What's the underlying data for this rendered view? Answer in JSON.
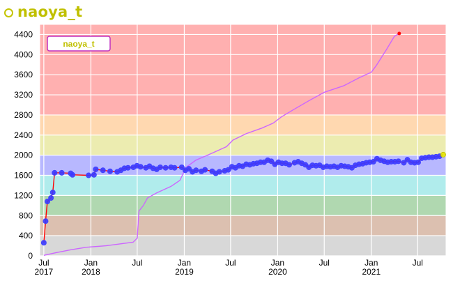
{
  "header": {
    "title": "naoya_t"
  },
  "colors": {
    "accent": "#c0c000",
    "rating_line": "#ff0000",
    "rating_points": "#3a3aff",
    "perf_line": "#cc66ff"
  },
  "chart_data": {
    "type": "line",
    "title": "",
    "legend": {
      "label": "naoya_t",
      "placement": "top-left"
    },
    "ylim": [
      0,
      4600
    ],
    "xlim": [
      "2017-06-15",
      "2021-10-20"
    ],
    "y_ticks": [
      0,
      400,
      800,
      1200,
      1600,
      2000,
      2400,
      2800,
      3200,
      3600,
      4000,
      4400
    ],
    "x_ticks": [
      {
        "date": "2017-07-01",
        "month": "Jul",
        "year": "2017"
      },
      {
        "date": "2018-01-01",
        "month": "Jan",
        "year": "2018"
      },
      {
        "date": "2018-07-01",
        "month": "Jul",
        "year": ""
      },
      {
        "date": "2019-01-01",
        "month": "Jan",
        "year": "2019"
      },
      {
        "date": "2019-07-01",
        "month": "Jul",
        "year": ""
      },
      {
        "date": "2020-01-01",
        "month": "Jan",
        "year": "2020"
      },
      {
        "date": "2020-07-01",
        "month": "Jul",
        "year": ""
      },
      {
        "date": "2021-01-01",
        "month": "Jan",
        "year": "2021"
      },
      {
        "date": "2021-07-01",
        "month": "Jul",
        "year": ""
      }
    ],
    "bands": [
      {
        "from": 0,
        "to": 400,
        "color": "#d8d8d8"
      },
      {
        "from": 400,
        "to": 800,
        "color": "#dcc0b0"
      },
      {
        "from": 800,
        "to": 1200,
        "color": "#b0d8b0"
      },
      {
        "from": 1200,
        "to": 1600,
        "color": "#b0ecec"
      },
      {
        "from": 1600,
        "to": 2000,
        "color": "#b8b8ff"
      },
      {
        "from": 2000,
        "to": 2400,
        "color": "#ecec b0"
      },
      {
        "from": 2400,
        "to": 2800,
        "color": "#ffd8b0"
      },
      {
        "from": 2800,
        "to": 4600,
        "color": "#ffb0b0"
      }
    ],
    "series": [
      {
        "name": "naoya_t",
        "kind": "rating",
        "points": [
          [
            "2017-07-01",
            260
          ],
          [
            "2017-07-08",
            690
          ],
          [
            "2017-07-15",
            1080
          ],
          [
            "2017-07-29",
            1150
          ],
          [
            "2017-08-05",
            1260
          ],
          [
            "2017-08-12",
            1650
          ],
          [
            "2017-09-09",
            1650
          ],
          [
            "2017-10-14",
            1640
          ],
          [
            "2017-10-21",
            1610
          ],
          [
            "2017-12-23",
            1600
          ],
          [
            "2018-01-13",
            1610
          ],
          [
            "2018-01-20",
            1720
          ],
          [
            "2018-02-17",
            1700
          ],
          [
            "2018-03-17",
            1680
          ],
          [
            "2018-04-14",
            1670
          ],
          [
            "2018-04-28",
            1700
          ],
          [
            "2018-05-12",
            1740
          ],
          [
            "2018-05-26",
            1750
          ],
          [
            "2018-06-16",
            1760
          ],
          [
            "2018-06-30",
            1790
          ],
          [
            "2018-07-14",
            1770
          ],
          [
            "2018-08-04",
            1750
          ],
          [
            "2018-08-18",
            1780
          ],
          [
            "2018-09-01",
            1740
          ],
          [
            "2018-09-15",
            1720
          ],
          [
            "2018-09-29",
            1760
          ],
          [
            "2018-10-20",
            1750
          ],
          [
            "2018-11-10",
            1760
          ],
          [
            "2018-11-24",
            1750
          ],
          [
            "2018-12-22",
            1760
          ],
          [
            "2019-01-05",
            1700
          ],
          [
            "2019-01-19",
            1730
          ],
          [
            "2019-02-02",
            1670
          ],
          [
            "2019-02-16",
            1700
          ],
          [
            "2019-03-09",
            1680
          ],
          [
            "2019-03-23",
            1710
          ],
          [
            "2019-04-20",
            1680
          ],
          [
            "2019-05-04",
            1640
          ],
          [
            "2019-05-18",
            1670
          ],
          [
            "2019-06-08",
            1690
          ],
          [
            "2019-06-22",
            1710
          ],
          [
            "2019-07-06",
            1770
          ],
          [
            "2019-07-20",
            1750
          ],
          [
            "2019-08-03",
            1790
          ],
          [
            "2019-08-17",
            1780
          ],
          [
            "2019-08-31",
            1820
          ],
          [
            "2019-09-14",
            1810
          ],
          [
            "2019-09-28",
            1830
          ],
          [
            "2019-10-12",
            1840
          ],
          [
            "2019-10-26",
            1860
          ],
          [
            "2019-11-09",
            1860
          ],
          [
            "2019-11-23",
            1900
          ],
          [
            "2019-12-07",
            1880
          ],
          [
            "2019-12-21",
            1820
          ],
          [
            "2020-01-04",
            1860
          ],
          [
            "2020-01-18",
            1840
          ],
          [
            "2020-02-01",
            1840
          ],
          [
            "2020-02-15",
            1810
          ],
          [
            "2020-03-07",
            1850
          ],
          [
            "2020-03-21",
            1870
          ],
          [
            "2020-04-04",
            1840
          ],
          [
            "2020-04-18",
            1810
          ],
          [
            "2020-05-02",
            1760
          ],
          [
            "2020-05-16",
            1800
          ],
          [
            "2020-05-30",
            1790
          ],
          [
            "2020-06-13",
            1800
          ],
          [
            "2020-06-27",
            1760
          ],
          [
            "2020-07-11",
            1780
          ],
          [
            "2020-07-25",
            1770
          ],
          [
            "2020-08-08",
            1780
          ],
          [
            "2020-08-22",
            1760
          ],
          [
            "2020-09-05",
            1790
          ],
          [
            "2020-09-19",
            1780
          ],
          [
            "2020-10-03",
            1770
          ],
          [
            "2020-10-17",
            1750
          ],
          [
            "2020-10-31",
            1800
          ],
          [
            "2020-11-14",
            1820
          ],
          [
            "2020-11-28",
            1830
          ],
          [
            "2020-12-12",
            1850
          ],
          [
            "2020-12-26",
            1860
          ],
          [
            "2021-01-09",
            1870
          ],
          [
            "2021-01-23",
            1930
          ],
          [
            "2021-02-06",
            1900
          ],
          [
            "2021-02-20",
            1880
          ],
          [
            "2021-03-06",
            1860
          ],
          [
            "2021-03-20",
            1870
          ],
          [
            "2021-04-03",
            1870
          ],
          [
            "2021-04-17",
            1880
          ],
          [
            "2021-05-08",
            1850
          ],
          [
            "2021-05-22",
            1910
          ],
          [
            "2021-06-05",
            1860
          ],
          [
            "2021-06-19",
            1850
          ],
          [
            "2021-07-03",
            1860
          ],
          [
            "2021-07-17",
            1940
          ],
          [
            "2021-07-31",
            1950
          ],
          [
            "2021-08-14",
            1960
          ],
          [
            "2021-08-28",
            1960
          ],
          [
            "2021-09-11",
            1970
          ],
          [
            "2021-09-25",
            1980
          ],
          [
            "2021-10-09",
            2010
          ]
        ]
      },
      {
        "name": "",
        "kind": "performance",
        "points": [
          [
            "2017-07-01",
            10
          ],
          [
            "2017-08-15",
            60
          ],
          [
            "2017-10-15",
            120
          ],
          [
            "2017-12-15",
            170
          ],
          [
            "2018-03-01",
            200
          ],
          [
            "2018-06-15",
            270
          ],
          [
            "2018-07-01",
            350
          ],
          [
            "2018-07-08",
            890
          ],
          [
            "2018-07-25",
            1000
          ],
          [
            "2018-08-10",
            1150
          ],
          [
            "2018-09-15",
            1250
          ],
          [
            "2018-11-10",
            1380
          ],
          [
            "2018-12-15",
            1500
          ],
          [
            "2019-01-08",
            1760
          ],
          [
            "2019-02-15",
            1900
          ],
          [
            "2019-04-15",
            2030
          ],
          [
            "2019-06-15",
            2170
          ],
          [
            "2019-07-10",
            2300
          ],
          [
            "2019-09-01",
            2430
          ],
          [
            "2019-11-01",
            2540
          ],
          [
            "2019-12-15",
            2640
          ],
          [
            "2020-01-15",
            2760
          ],
          [
            "2020-03-01",
            2900
          ],
          [
            "2020-05-01",
            3080
          ],
          [
            "2020-07-01",
            3250
          ],
          [
            "2020-09-15",
            3380
          ],
          [
            "2020-11-15",
            3540
          ],
          [
            "2021-01-01",
            3650
          ],
          [
            "2021-01-20",
            3780
          ],
          [
            "2021-03-01",
            4100
          ],
          [
            "2021-04-01",
            4360
          ],
          [
            "2021-04-20",
            4420
          ]
        ]
      }
    ]
  }
}
